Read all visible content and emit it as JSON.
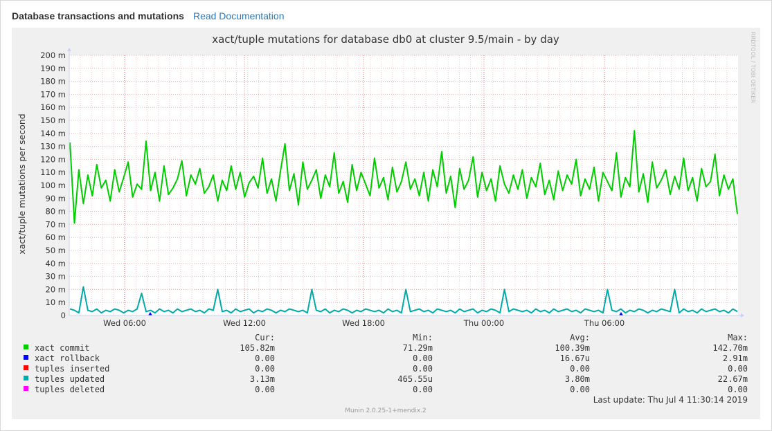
{
  "header": {
    "title": "Database transactions and mutations",
    "doc_link": "Read Documentation"
  },
  "chart_data": {
    "type": "line",
    "title": "xact/tuple mutations for database db0 at cluster 9.5/main - by day",
    "ylabel": "xact/tuple mutations per second",
    "xlabel": "",
    "ylim": [
      0,
      200
    ],
    "y_unit": "m",
    "y_ticks": [
      0,
      10,
      20,
      30,
      40,
      50,
      60,
      70,
      80,
      90,
      100,
      110,
      120,
      130,
      140,
      150,
      160,
      170,
      180,
      190,
      200
    ],
    "x_ticks": [
      "Wed 06:00",
      "Wed 12:00",
      "Wed 18:00",
      "Thu 00:00",
      "Thu 06:00"
    ],
    "grid": true,
    "side_label": "RRDTOOL / TOBI OETIKER",
    "footer": "Munin 2.0.25-1+mendix.2",
    "legend_headers": [
      "Cur:",
      "Min:",
      "Avg:",
      "Max:"
    ],
    "series": [
      {
        "name": "xact commit",
        "color": "#00cc00",
        "cur": "105.82m",
        "min": "71.29m",
        "avg": "100.39m",
        "max": "142.70m",
        "values": [
          133,
          71,
          112,
          86,
          108,
          92,
          116,
          98,
          104,
          88,
          112,
          95,
          106,
          118,
          91,
          101,
          97,
          134,
          96,
          110,
          88,
          115,
          93,
          98,
          105,
          119,
          92,
          108,
          101,
          113,
          94,
          99,
          108,
          88,
          104,
          96,
          115,
          97,
          110,
          91,
          102,
          107,
          98,
          121,
          94,
          105,
          88,
          111,
          132,
          96,
          109,
          85,
          118,
          97,
          104,
          112,
          90,
          108,
          99,
          125,
          94,
          103,
          87,
          116,
          96,
          110,
          101,
          92,
          121,
          98,
          106,
          89,
          114,
          95,
          103,
          118,
          97,
          105,
          92,
          110,
          88,
          112,
          99,
          126,
          94,
          107,
          83,
          113,
          97,
          104,
          122,
          91,
          110,
          96,
          105,
          88,
          115,
          101,
          94,
          108,
          97,
          112,
          90,
          106,
          99,
          117,
          93,
          104,
          89,
          111,
          96,
          108,
          101,
          120,
          92,
          105,
          97,
          114,
          88,
          110,
          103,
          96,
          125,
          91,
          106,
          99,
          142,
          95,
          109,
          87,
          118,
          98,
          104,
          112,
          93,
          107,
          97,
          121,
          96,
          106,
          88,
          113,
          99,
          103,
          124,
          92,
          108,
          97,
          105,
          78
        ]
      },
      {
        "name": "xact rollback",
        "color": "#0000ff",
        "cur": "0.00",
        "min": "0.00",
        "avg": "16.67u",
        "max": "2.91m"
      },
      {
        "name": "tuples inserted",
        "color": "#ff0000",
        "cur": "0.00",
        "min": "0.00",
        "avg": "0.00",
        "max": "0.00"
      },
      {
        "name": "tuples updated",
        "color": "#00aaaa",
        "cur": "3.13m",
        "min": "465.55u",
        "avg": "3.80m",
        "max": "22.67m",
        "values": [
          5,
          4,
          2,
          22,
          4,
          3,
          5,
          2,
          4,
          3,
          5,
          4,
          2,
          4,
          3,
          5,
          17,
          3,
          4,
          2,
          5,
          3,
          4,
          2,
          5,
          3,
          4,
          5,
          3,
          4,
          2,
          5,
          4,
          20,
          3,
          4,
          2,
          5,
          3,
          4,
          5,
          2,
          4,
          3,
          5,
          4,
          2,
          4,
          3,
          5,
          4,
          3,
          4,
          2,
          20,
          4,
          3,
          5,
          2,
          4,
          3,
          5,
          4,
          2,
          4,
          3,
          5,
          4,
          3,
          4,
          2,
          5,
          3,
          4,
          2,
          20,
          3,
          4,
          5,
          3,
          4,
          2,
          5,
          4,
          3,
          4,
          2,
          5,
          3,
          4,
          5,
          2,
          4,
          3,
          5,
          4,
          2,
          20,
          3,
          5,
          4,
          3,
          4,
          2,
          5,
          3,
          4,
          2,
          5,
          3,
          4,
          5,
          3,
          4,
          2,
          5,
          4,
          3,
          4,
          2,
          20,
          4,
          3,
          5,
          2,
          4,
          3,
          5,
          4,
          2,
          4,
          3,
          5,
          4,
          3,
          20,
          2,
          5,
          3,
          4,
          2,
          5,
          3,
          4,
          5,
          3,
          4,
          2,
          5,
          3
        ]
      },
      {
        "name": "tuples deleted",
        "color": "#ff00ff",
        "cur": "0.00",
        "min": "0.00",
        "avg": "0.00",
        "max": "0.00"
      }
    ],
    "last_update": "Last update:  Thu Jul  4 11:30:14 2019"
  }
}
